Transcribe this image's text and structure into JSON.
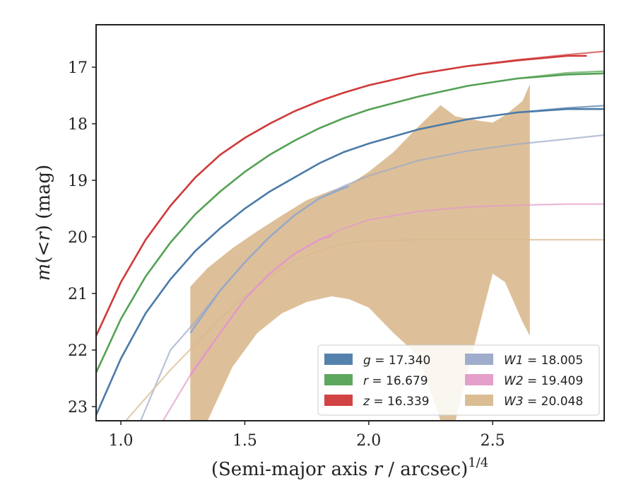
{
  "chart_data": {
    "type": "line",
    "xlabel": "(Semi-major axis r / arcsec)^1/4",
    "xlabel_parts": {
      "prefix": "(Semi-major axis ",
      "var": "r",
      "suffix": " / arcsec)",
      "sup": "1/4"
    },
    "ylabel": "m(<r) (mag)",
    "ylabel_parts": {
      "m": "m",
      "open": "(",
      "lt": "<",
      "r": "r",
      "close": ")",
      "unit": " (mag)"
    },
    "xlim": [
      0.9,
      2.95
    ],
    "ylim": [
      23.25,
      16.25
    ],
    "y_inverted": true,
    "xticks": [
      1.0,
      1.5,
      2.0,
      2.5
    ],
    "xtick_labels": [
      "1.0",
      "1.5",
      "2.0",
      "2.5"
    ],
    "yticks": [
      17,
      18,
      19,
      20,
      21,
      22,
      23
    ],
    "ytick_labels": [
      "17",
      "18",
      "19",
      "20",
      "21",
      "22",
      "23"
    ],
    "grid": false,
    "legend_position": "lower-right",
    "series": [
      {
        "name": "g = 17.340",
        "band": "g",
        "value": "17.340",
        "color": "#4c7ba9",
        "model_x": [
          0.9,
          1.0,
          1.1,
          1.2,
          1.3,
          1.4,
          1.5,
          1.6,
          1.7,
          1.8,
          1.9,
          2.0,
          2.2,
          2.4,
          2.6,
          2.8,
          2.95
        ],
        "model_y": [
          23.15,
          22.15,
          21.35,
          20.75,
          20.25,
          19.85,
          19.5,
          19.2,
          18.95,
          18.7,
          18.5,
          18.35,
          18.1,
          17.92,
          17.8,
          17.72,
          17.68
        ],
        "data_x": [
          0.9,
          1.0,
          1.1,
          1.2,
          1.3,
          1.4,
          1.5,
          1.6,
          1.7,
          1.8,
          1.9,
          2.0,
          2.2,
          2.4,
          2.6,
          2.8,
          2.95
        ],
        "data_y": [
          23.15,
          22.15,
          21.35,
          20.75,
          20.25,
          19.85,
          19.5,
          19.2,
          18.95,
          18.7,
          18.5,
          18.35,
          18.1,
          17.92,
          17.8,
          17.74,
          17.74
        ]
      },
      {
        "name": "r = 16.679",
        "band": "r",
        "value": "16.679",
        "color": "#55a255",
        "model_x": [
          0.9,
          1.0,
          1.1,
          1.2,
          1.3,
          1.4,
          1.5,
          1.6,
          1.7,
          1.8,
          1.9,
          2.0,
          2.2,
          2.4,
          2.6,
          2.8,
          2.95
        ],
        "model_y": [
          22.4,
          21.45,
          20.7,
          20.1,
          19.6,
          19.2,
          18.85,
          18.55,
          18.3,
          18.08,
          17.9,
          17.75,
          17.52,
          17.33,
          17.2,
          17.1,
          17.07
        ],
        "data_x": [
          0.9,
          1.0,
          1.1,
          1.2,
          1.3,
          1.4,
          1.5,
          1.6,
          1.7,
          1.8,
          1.9,
          2.0,
          2.2,
          2.4,
          2.6,
          2.8,
          2.95
        ],
        "data_y": [
          22.4,
          21.45,
          20.7,
          20.1,
          19.6,
          19.2,
          18.85,
          18.55,
          18.3,
          18.08,
          17.9,
          17.75,
          17.52,
          17.33,
          17.2,
          17.13,
          17.11
        ]
      },
      {
        "name": "z = 16.339",
        "band": "z",
        "value": "16.339",
        "color": "#d03a3a",
        "model_x": [
          0.9,
          1.0,
          1.1,
          1.2,
          1.3,
          1.4,
          1.5,
          1.6,
          1.7,
          1.8,
          1.9,
          2.0,
          2.2,
          2.4,
          2.6,
          2.8,
          2.95
        ],
        "model_y": [
          21.75,
          20.8,
          20.05,
          19.45,
          18.95,
          18.55,
          18.25,
          18.0,
          17.78,
          17.6,
          17.45,
          17.32,
          17.12,
          16.98,
          16.87,
          16.78,
          16.72
        ],
        "data_x": [
          0.9,
          1.0,
          1.1,
          1.2,
          1.3,
          1.4,
          1.5,
          1.6,
          1.7,
          1.8,
          1.9,
          2.0,
          2.2,
          2.4,
          2.6,
          2.8,
          2.88
        ],
        "data_y": [
          21.75,
          20.8,
          20.05,
          19.45,
          18.95,
          18.55,
          18.25,
          18.0,
          17.78,
          17.6,
          17.45,
          17.32,
          17.12,
          16.98,
          16.88,
          16.8,
          16.8
        ]
      },
      {
        "name": "W1 = 18.005",
        "band": "W1",
        "value": "18.005",
        "color": "#9aa8c8",
        "model_x": [
          1.08,
          1.2,
          1.3,
          1.4,
          1.5,
          1.6,
          1.7,
          1.8,
          1.9,
          2.0,
          2.2,
          2.4,
          2.6,
          2.8,
          2.95
        ],
        "model_y": [
          23.25,
          22.0,
          21.5,
          20.95,
          20.45,
          20.0,
          19.62,
          19.32,
          19.1,
          18.92,
          18.65,
          18.48,
          18.36,
          18.27,
          18.2
        ],
        "data_x": [
          1.28,
          1.4,
          1.5,
          1.6,
          1.7,
          1.8,
          1.92
        ],
        "data_y": [
          21.7,
          20.95,
          20.45,
          20.0,
          19.62,
          19.32,
          19.1
        ]
      },
      {
        "name": "W2 = 19.409",
        "band": "W2",
        "value": "19.409",
        "color": "#e39ac8",
        "model_x": [
          1.17,
          1.3,
          1.4,
          1.5,
          1.6,
          1.7,
          1.8,
          1.9,
          2.0,
          2.2,
          2.4,
          2.6,
          2.8,
          2.95
        ],
        "model_y": [
          23.25,
          22.3,
          21.7,
          21.1,
          20.65,
          20.3,
          20.05,
          19.85,
          19.7,
          19.55,
          19.47,
          19.44,
          19.42,
          19.42
        ],
        "data_x": [
          1.28,
          1.4,
          1.5,
          1.6,
          1.7,
          1.8,
          1.85
        ],
        "data_y": [
          22.45,
          21.7,
          21.1,
          20.65,
          20.3,
          20.05,
          19.98
        ]
      },
      {
        "name": "W3 = 20.048",
        "band": "W3",
        "value": "20.048",
        "color": "#d9b98e",
        "model_x": [
          1.02,
          1.1,
          1.2,
          1.3,
          1.4,
          1.5,
          1.6,
          1.7,
          1.8,
          1.9,
          2.0,
          2.2,
          2.4,
          2.6,
          2.8,
          2.95
        ],
        "model_y": [
          23.25,
          22.85,
          22.35,
          21.9,
          21.45,
          21.05,
          20.7,
          20.42,
          20.25,
          20.12,
          20.07,
          20.05,
          20.05,
          20.05,
          20.05,
          20.05
        ],
        "band_x": [
          1.28,
          1.35,
          1.45,
          1.55,
          1.65,
          1.75,
          1.85,
          1.92,
          2.0,
          2.1,
          2.2,
          2.29,
          2.35,
          2.45,
          2.5,
          2.55,
          2.62,
          2.65
        ],
        "band_upper": [
          20.88,
          20.55,
          20.2,
          19.9,
          19.62,
          19.35,
          19.18,
          19.08,
          18.85,
          18.5,
          18.05,
          17.67,
          17.87,
          17.95,
          17.98,
          17.85,
          17.6,
          17.3
        ],
        "band_lower": [
          23.25,
          23.25,
          22.3,
          21.7,
          21.35,
          21.15,
          21.05,
          21.1,
          21.25,
          21.7,
          22.1,
          23.25,
          23.25,
          21.5,
          20.65,
          20.8,
          21.5,
          21.75
        ]
      }
    ]
  }
}
